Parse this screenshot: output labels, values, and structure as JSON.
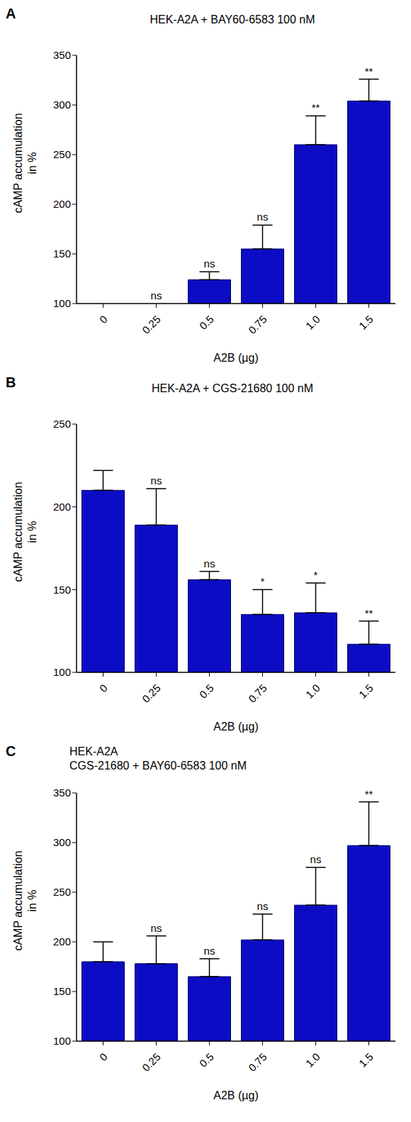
{
  "chart_data": [
    {
      "type": "bar",
      "panel": "A",
      "title": "HEK-A2A + BAY60-6583 100 nM",
      "x_label": "A2B (µg)",
      "y_label": "cAMP accumulation\nin %",
      "categories": [
        "0",
        "0.25",
        "0.5",
        "0.75",
        "1.0",
        "1.5"
      ],
      "values": [
        100,
        100,
        124,
        155,
        260,
        304
      ],
      "errors": [
        0,
        0,
        8,
        24,
        29,
        22
      ],
      "significance": [
        null,
        "ns",
        "ns",
        "ns",
        "**",
        "**"
      ],
      "color": "#0c0cc4",
      "ylim": [
        100,
        350
      ],
      "yticks": [
        100,
        150,
        200,
        250,
        300,
        350
      ],
      "grid": false
    },
    {
      "type": "bar",
      "panel": "B",
      "title": "HEK-A2A + CGS-21680 100 nM",
      "x_label": "A2B (µg)",
      "y_label": "cAMP accumulation\nin %",
      "categories": [
        "0",
        "0.25",
        "0.5",
        "0.75",
        "1.0",
        "1.5"
      ],
      "values": [
        210,
        189,
        156,
        135,
        136,
        117
      ],
      "errors": [
        12,
        22,
        5,
        15,
        18,
        14
      ],
      "significance": [
        null,
        "ns",
        "ns",
        "*",
        "*",
        "**"
      ],
      "color": "#0c0cc4",
      "ylim": [
        100,
        250
      ],
      "yticks": [
        100,
        150,
        200,
        250
      ],
      "grid": false
    },
    {
      "type": "bar",
      "panel": "C",
      "title": "HEK-A2A\nCGS-21680 + BAY60-6583 100 nM",
      "x_label": "A2B (µg)",
      "y_label": "cAMP accumulation\nin %",
      "categories": [
        "0",
        "0.25",
        "0.5",
        "0.75",
        "1.0",
        "1.5"
      ],
      "values": [
        180,
        178,
        165,
        202,
        237,
        297
      ],
      "errors": [
        20,
        28,
        18,
        26,
        38,
        44
      ],
      "significance": [
        null,
        "ns",
        "ns",
        "ns",
        "ns",
        "**"
      ],
      "color": "#0c0cc4",
      "ylim": [
        100,
        350
      ],
      "yticks": [
        100,
        150,
        200,
        250,
        300,
        350
      ],
      "grid": false
    }
  ]
}
